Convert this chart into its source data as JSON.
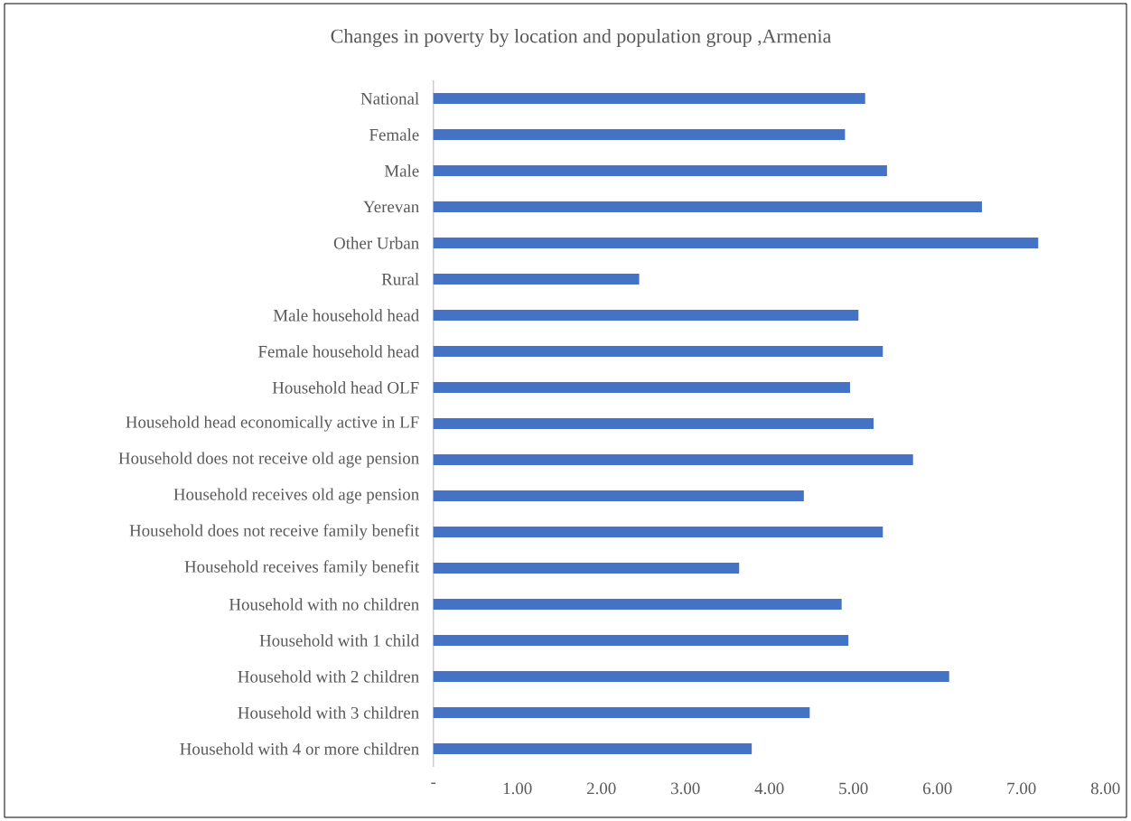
{
  "chart_data": {
    "type": "bar",
    "orientation": "horizontal",
    "title": "Changes in poverty by location and population group ,Armenia",
    "categories": [
      "National",
      "Female",
      "Male",
      "Yerevan",
      "Other Urban",
      "Rural",
      "Male household head",
      "Female household head",
      "Household head OLF",
      "Household head economically active in LF",
      "Household does not receive old age pension",
      "Household receives old age pension",
      "Household does not receive family benefit",
      "Household receives family benefit",
      "Household with no children",
      "Household with 1 child",
      "Household with 2 children",
      "Household with 3 children",
      "Household with 4 or more children"
    ],
    "values": [
      5.14,
      4.9,
      5.4,
      6.53,
      7.2,
      2.45,
      5.06,
      5.35,
      4.96,
      5.24,
      5.71,
      4.41,
      5.35,
      3.64,
      4.86,
      4.94,
      6.14,
      4.48,
      3.79
    ],
    "color": "#4472c4",
    "xlim": [
      0,
      8
    ],
    "xticks": [
      {
        "value": 0,
        "label": "-"
      },
      {
        "value": 1,
        "label": "1.00"
      },
      {
        "value": 2,
        "label": "2.00"
      },
      {
        "value": 3,
        "label": "3.00"
      },
      {
        "value": 4,
        "label": "4.00"
      },
      {
        "value": 5,
        "label": "5.00"
      },
      {
        "value": 6,
        "label": "6.00"
      },
      {
        "value": 7,
        "label": "7.00"
      },
      {
        "value": 8,
        "label": "8.00"
      }
    ]
  }
}
